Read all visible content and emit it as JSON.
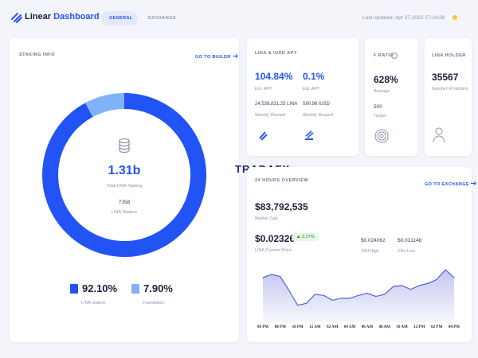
{
  "header": {
    "logo_first": "Linear",
    "logo_second": "Dashboard",
    "tabs": [
      "GENERAL",
      "EXCHANGE"
    ],
    "last_updated": "Last updated: Apr 27,2022 17:14:26"
  },
  "staking": {
    "title": "STAKING INFO",
    "link": "GO TO BUILDR",
    "total": "1.31b",
    "total_label": "Total LINA Staking",
    "stakers": "7358",
    "stakers_label": "LINA Stakers",
    "donut": {
      "type": "pie",
      "values": [
        92.1,
        7.9
      ],
      "value_labels": [
        "92.10%",
        "7.90%"
      ],
      "labels": [
        "LINA staked",
        "Foundation"
      ],
      "colors": [
        "#2253f5",
        "#7fb2f7"
      ]
    }
  },
  "apy": {
    "title": "LINA & lUSD APY",
    "items": [
      {
        "value": "104.84%",
        "label": "Est. APY",
        "reward": "24,538,831.25 LINA",
        "reward_label": "Weekly Reward"
      },
      {
        "value": "0.1%",
        "label": "Est. APY",
        "reward": "590.96 lUSD",
        "reward_label": "Weekly Reward"
      }
    ]
  },
  "ratio": {
    "title": "F RATIO",
    "average": "628%",
    "average_label": "Average",
    "target": "500",
    "target_label": "Target"
  },
  "holder": {
    "title": "LINA HOLDER",
    "value": "35567",
    "label": "Number of Holders"
  },
  "watermark": "TRADAFX",
  "overview": {
    "title": "24 HOURS OVERVIEW",
    "link": "GO TO EXCHANGE",
    "market_cap": "$83,792,535",
    "market_cap_label": "Market Cap",
    "price": "$0.02326",
    "change": "2.17%",
    "price_label": "LINA Current Price",
    "high": "$0.024062",
    "high_label": "24H High",
    "low": "$0.021148",
    "low_label": "24H Low",
    "chart_data": {
      "type": "area",
      "color": "#5560d8",
      "x": [
        0,
        1,
        2,
        3,
        4,
        5,
        6,
        7,
        8,
        9,
        10,
        11,
        12,
        13,
        14,
        15,
        16,
        17,
        18,
        19,
        20,
        21,
        22
      ],
      "values": [
        0.02342,
        0.02364,
        0.0235,
        0.0225,
        0.02143,
        0.02157,
        0.02221,
        0.02214,
        0.02179,
        0.02193,
        0.02193,
        0.02214,
        0.02229,
        0.02207,
        0.02221,
        0.02278,
        0.02285,
        0.02257,
        0.02285,
        0.023,
        0.02328,
        0.02399,
        0.02342
      ],
      "xlim": [
        0,
        22
      ],
      "ylim": [
        0.0205,
        0.0245
      ],
      "xticks": [
        {
          "value": 0,
          "label": "06 PM"
        },
        {
          "value": 2,
          "label": "08 PM"
        },
        {
          "value": 4,
          "label": "10 PM"
        },
        {
          "value": 6,
          "label": "12 AM"
        },
        {
          "value": 8,
          "label": "02 AM"
        },
        {
          "value": 10,
          "label": "04 AM"
        },
        {
          "value": 12,
          "label": "06 AM"
        },
        {
          "value": 14,
          "label": "08 AM"
        },
        {
          "value": 16,
          "label": "10 AM"
        },
        {
          "value": 18,
          "label": "12 PM"
        },
        {
          "value": 20,
          "label": "02 PM"
        },
        {
          "value": 22,
          "label": "04 PM"
        }
      ]
    }
  }
}
